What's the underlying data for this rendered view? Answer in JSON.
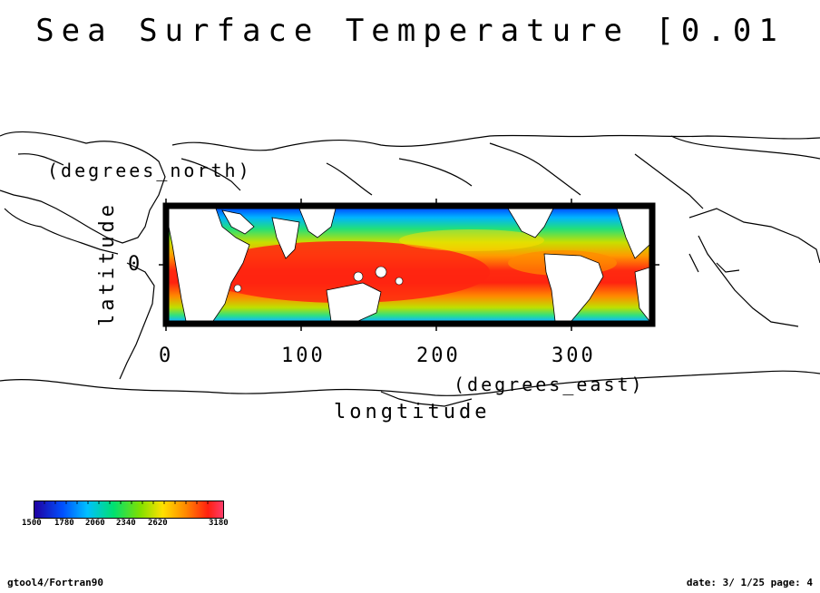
{
  "title": "Sea Surface Temperature [0.01",
  "x_axis": {
    "label": "longtitude",
    "unit": "(degrees_east)",
    "ticks": [
      "0",
      "100",
      "200",
      "300"
    ]
  },
  "y_axis": {
    "label": "latitude",
    "unit": "(degrees_north)",
    "ticks": [
      "0"
    ]
  },
  "colorbar": {
    "ticks": [
      "1500",
      "1780",
      "2060",
      "2340",
      "2620",
      "3180"
    ],
    "colors": [
      "#1a1ae6",
      "#00aaff",
      "#00e6aa",
      "#00dd44",
      "#aadd00",
      "#ffdd00",
      "#ff8800",
      "#ff2200",
      "#ff3355"
    ]
  },
  "footer": {
    "left": "gtool4/Fortran90",
    "right": "date: 3/ 1/25 page: 4"
  },
  "chart_data": {
    "type": "heatmap",
    "title": "Sea Surface Temperature [0.01",
    "xlabel": "longtitude (degrees_east)",
    "ylabel": "latitude (degrees_north)",
    "x_ticks": [
      0,
      100,
      200,
      300
    ],
    "y_ticks": [
      0
    ],
    "xlim": [
      0,
      360
    ],
    "colorbar_range": [
      1500,
      3180
    ],
    "colorbar_ticks": [
      1500,
      1780,
      2060,
      2340,
      2620,
      3180
    ]
  }
}
